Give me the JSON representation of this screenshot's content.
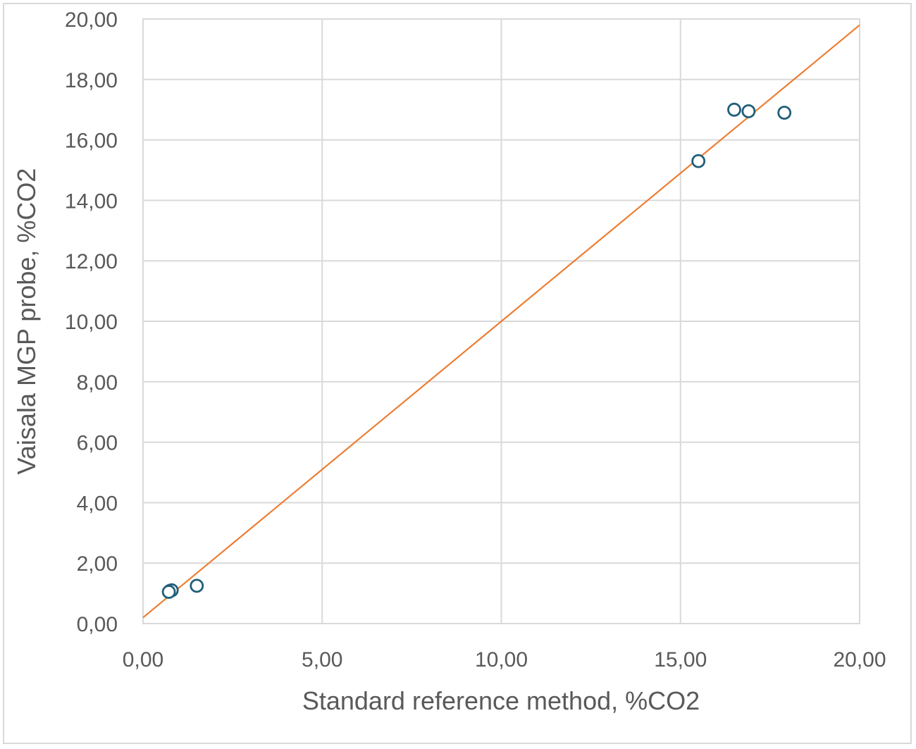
{
  "chart_data": {
    "type": "scatter",
    "title": "",
    "xlabel": "Standard reference method, %CO2",
    "ylabel": "Vaisala MGP probe, %CO2",
    "xlim": [
      0,
      20
    ],
    "ylim": [
      0,
      20
    ],
    "x_ticks": [
      "0,00",
      "5,00",
      "10,00",
      "15,00",
      "20,00"
    ],
    "y_ticks": [
      "0,00",
      "2,00",
      "4,00",
      "6,00",
      "8,00",
      "10,00",
      "12,00",
      "14,00",
      "16,00",
      "18,00",
      "20,00"
    ],
    "grid": true,
    "legend": "none",
    "series": [
      {
        "type": "scatter",
        "marker": "open-circle",
        "color": "#1f5f7a",
        "points": [
          {
            "x": 0.75,
            "y": 1.08
          },
          {
            "x": 0.8,
            "y": 1.1
          },
          {
            "x": 0.72,
            "y": 1.05
          },
          {
            "x": 1.5,
            "y": 1.25
          },
          {
            "x": 15.5,
            "y": 15.3
          },
          {
            "x": 16.5,
            "y": 17.0
          },
          {
            "x": 16.9,
            "y": 16.95
          },
          {
            "x": 17.9,
            "y": 16.9
          }
        ]
      },
      {
        "type": "line",
        "color": "#ed7d31",
        "points": [
          {
            "x": 0,
            "y": 0.2
          },
          {
            "x": 20,
            "y": 19.8
          }
        ]
      }
    ]
  }
}
